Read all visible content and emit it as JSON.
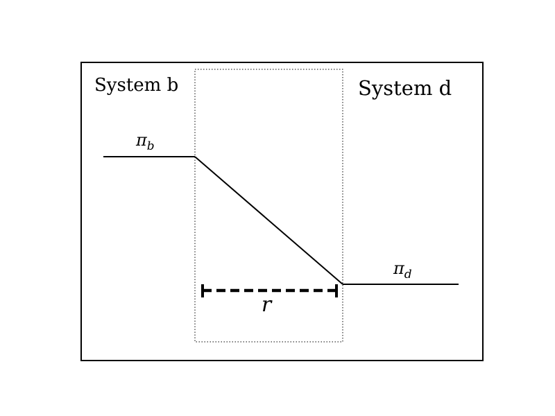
{
  "diagram": {
    "left_system_label": "System b",
    "right_system_label": "System d",
    "left_level_symbol": "π",
    "left_level_subscript": "b",
    "right_level_symbol": "π",
    "right_level_subscript": "d",
    "distance_label": "r"
  },
  "colors": {
    "stroke": "#000000",
    "background": "#ffffff"
  }
}
